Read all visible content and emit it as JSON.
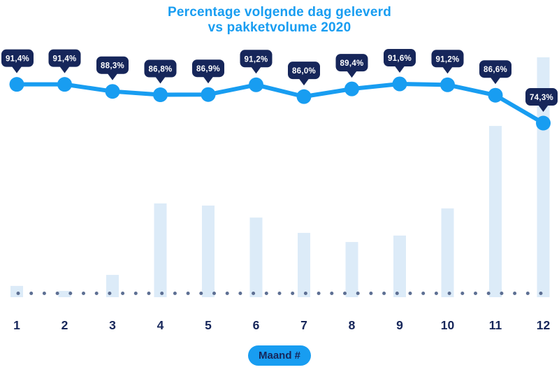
{
  "title": {
    "line1": "Percentage volgende dag geleverd",
    "line2": "vs pakketvolume 2020"
  },
  "x_axis": {
    "title": "Maand #",
    "labels": [
      "1",
      "2",
      "3",
      "4",
      "5",
      "6",
      "7",
      "8",
      "9",
      "10",
      "11",
      "12"
    ]
  },
  "chart_data": {
    "type": "combo",
    "title": "Percentage volgende dag geleverd vs pakketvolume 2020",
    "xlabel": "Maand #",
    "categories": [
      1,
      2,
      3,
      4,
      5,
      6,
      7,
      8,
      9,
      10,
      11,
      12
    ],
    "series": [
      {
        "name": "Percentage volgende dag geleverd",
        "type": "line",
        "unit": "%",
        "values": [
          91.4,
          91.4,
          88.3,
          86.8,
          86.9,
          91.2,
          86.0,
          89.4,
          91.6,
          91.2,
          86.6,
          74.3
        ],
        "labels": [
          "91,4%",
          "91,4%",
          "88,3%",
          "86,8%",
          "86,9%",
          "91,2%",
          "86,0%",
          "89,4%",
          "91,6%",
          "91,2%",
          "86,6%",
          "74,3%"
        ]
      },
      {
        "name": "Pakketvolume 2020",
        "type": "bar",
        "unit": "relative height, no y-axis shown (busiest month = 100)",
        "values": [
          4.7,
          2.6,
          9.3,
          39.1,
          38.2,
          33.2,
          26.8,
          23.0,
          25.7,
          37.0,
          71.4,
          100
        ]
      }
    ],
    "y_axis": "hidden",
    "grid": "off",
    "legend": "none",
    "baseline_style": "dotted"
  },
  "colors": {
    "accent_blue": "#189df1",
    "navy": "#16265a",
    "bar_fill": "#dcebf8",
    "baseline_dot": "#5d6f93",
    "label_text": "#ffffff",
    "background": "#ffffff"
  }
}
